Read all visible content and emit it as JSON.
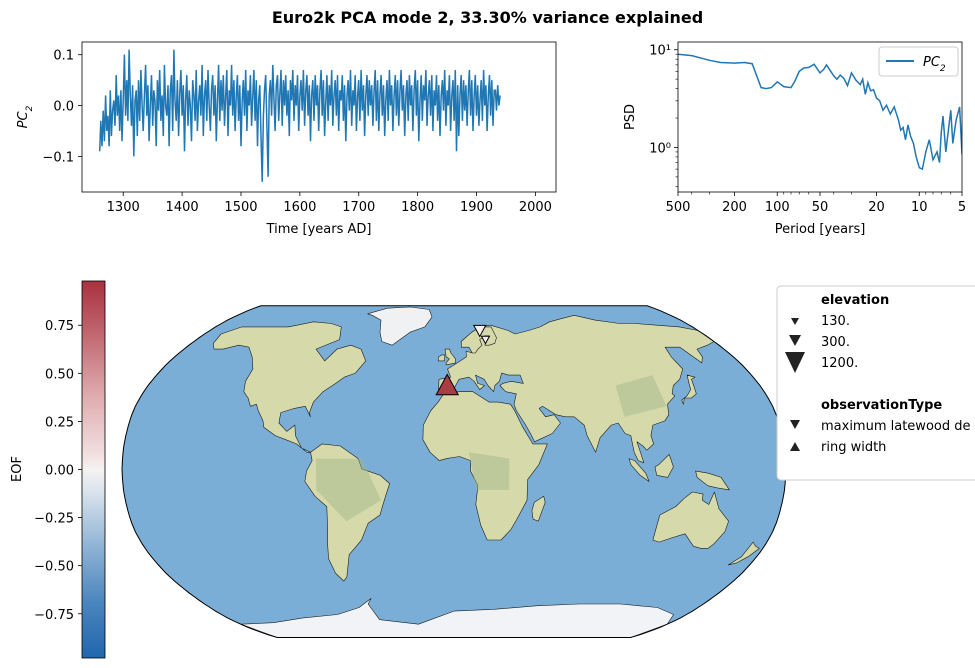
{
  "figure": {
    "title": "Euro2k PCA mode 2, 33.30% variance explained"
  },
  "chart_data": [
    {
      "type": "line",
      "panel": "timeseries",
      "title": "",
      "xlabel": "Time [years AD]",
      "ylabel": "PC_2",
      "xlim": [
        1230,
        2035
      ],
      "ylim": [
        -0.17,
        0.125
      ],
      "xticks": [
        1300,
        1400,
        1500,
        1600,
        1700,
        1800,
        1900,
        2000
      ],
      "xtick_labels": [
        "1300",
        "1400",
        "1500",
        "1600",
        "1700",
        "1800",
        "1900",
        "2000"
      ],
      "yticks": [
        -0.1,
        0.0,
        0.1
      ],
      "ytick_labels": [
        "−0.1",
        "0.0",
        "0.1"
      ],
      "grid": false,
      "line_color": "#1f77b4",
      "series": [
        {
          "x_start": 1260,
          "x_end": 2000,
          "step": 2,
          "values": [
            -0.09,
            -0.03,
            -0.08,
            -0.01,
            -0.07,
            0.02,
            -0.05,
            -0.02,
            -0.08,
            0.03,
            -0.06,
            -0.01,
            0.01,
            -0.04,
            0.06,
            -0.02,
            0.02,
            -0.05,
            0.03,
            -0.07,
            0.01,
            0.1,
            -0.02,
            0.05,
            -0.03,
            0.11,
            0.02,
            -0.04,
            0.04,
            -0.1,
            0.01,
            0.03,
            -0.06,
            0.05,
            -0.03,
            0.07,
            0.0,
            -0.05,
            0.02,
            0.08,
            -0.02,
            0.04,
            -0.07,
            0.0,
            0.06,
            -0.04,
            0.03,
            0.01,
            -0.08,
            0.05,
            -0.01,
            0.07,
            -0.03,
            0.02,
            -0.06,
            0.08,
            0.0,
            -0.02,
            0.04,
            -0.08,
            0.03,
            0.06,
            -0.05,
            0.11,
            0.01,
            -0.03,
            0.05,
            -0.06,
            0.02,
            0.07,
            -0.02,
            0.04,
            -0.09,
            0.01,
            0.06,
            -0.04,
            0.03,
            0.0,
            -0.07,
            0.05,
            0.02,
            -0.03,
            0.07,
            -0.05,
            0.01,
            0.04,
            -0.02,
            0.08,
            -0.06,
            0.02,
            0.05,
            -0.03,
            0.07,
            0.0,
            -0.05,
            0.03,
            0.06,
            -0.02,
            0.04,
            -0.07,
            0.01,
            0.08,
            -0.03,
            0.05,
            -0.01,
            0.06,
            -0.04,
            0.02,
            0.07,
            -0.06,
            0.03,
            0.0,
            0.08,
            -0.02,
            0.05,
            -0.05,
            0.02,
            0.06,
            -0.03,
            0.04,
            -0.08,
            0.01,
            0.05,
            -0.02,
            0.07,
            -0.05,
            0.03,
            0.0,
            0.06,
            -0.04,
            0.02,
            0.07,
            -0.03,
            0.05,
            -0.08,
            0.01,
            0.04,
            -0.06,
            -0.15,
            -0.02,
            0.03,
            0.06,
            -0.04,
            -0.14,
            0.02,
            0.05,
            -0.02,
            0.08,
            0.01,
            -0.05,
            0.04,
            0.06,
            -0.03,
            0.02,
            0.07,
            -0.04,
            0.05,
            0.0,
            0.06,
            -0.02,
            0.03,
            -0.06,
            0.05,
            0.01,
            0.07,
            -0.03,
            0.04,
            0.0,
            0.06,
            -0.05,
            0.02,
            0.05,
            -0.01,
            0.07,
            -0.04,
            0.03,
            0.06,
            -0.02,
            0.04,
            -0.07,
            0.02,
            0.05,
            -0.03,
            0.06,
            0.0,
            0.04,
            -0.05,
            0.03,
            0.07,
            -0.02,
            0.05,
            -0.06,
            0.01,
            0.06,
            -0.03,
            0.04,
            0.0,
            0.07,
            -0.04,
            0.02,
            0.05,
            -0.02,
            0.06,
            -0.05,
            0.03,
            0.01,
            0.06,
            -0.03,
            0.04,
            -0.07,
            0.02,
            0.05,
            -0.01,
            0.07,
            -0.04,
            0.03,
            0.0,
            0.06,
            -0.05,
            0.02,
            0.05,
            -0.03,
            0.07,
            -0.01,
            0.04,
            -0.06,
            0.02,
            0.06,
            -0.02,
            0.05,
            0.0,
            0.04,
            -0.04,
            0.03,
            0.07,
            -0.03,
            0.05,
            -0.05,
            0.02,
            0.06,
            -0.02,
            0.04,
            -0.06,
            0.01,
            0.05,
            -0.03,
            0.07,
            0.0,
            0.04,
            -0.05,
            0.02,
            0.06,
            -0.02,
            0.05,
            -0.04,
            0.03,
            0.07,
            -0.01,
            0.04,
            -0.06,
            0.02,
            0.05,
            -0.03,
            0.06,
            0.0,
            0.04,
            -0.05,
            0.03,
            0.07,
            -0.02,
            0.05,
            -0.07,
            0.01,
            0.06,
            -0.03,
            0.04,
            0.01,
            0.07,
            -0.04,
            0.02,
            0.05,
            -0.02,
            0.06,
            -0.05,
            0.03,
            0.0,
            0.06,
            -0.03,
            0.04,
            -0.06,
            0.02,
            0.05,
            -0.01,
            0.07,
            -0.04,
            0.03,
            0.0,
            0.06,
            -0.05,
            0.02,
            0.05,
            -0.03,
            0.07,
            -0.09,
            0.04,
            -0.06,
            0.02,
            0.06,
            -0.03,
            0.05,
            -0.01,
            0.04,
            -0.04,
            0.03,
            0.07,
            -0.02,
            0.05,
            -0.05,
            0.02,
            0.06,
            -0.02,
            0.04,
            -0.04,
            0.01,
            0.05,
            -0.03,
            0.07,
            0.0,
            0.04,
            -0.05,
            0.02,
            0.06,
            -0.02,
            0.05,
            -0.04,
            0.03,
            0.03,
            -0.01,
            0.04,
            0.0,
            0.02
          ]
        }
      ]
    },
    {
      "type": "line",
      "panel": "spectrum",
      "title": "",
      "xlabel": "Period [years]",
      "ylabel": "PSD",
      "x_scale": "log (reversed)",
      "y_scale": "log",
      "xlim": [
        500,
        5
      ],
      "ylim": [
        0.35,
        12
      ],
      "xticks": [
        500,
        200,
        100,
        50,
        20,
        10,
        5
      ],
      "xtick_labels": [
        "500",
        "200",
        "100",
        "50",
        "20",
        "10",
        "5"
      ],
      "yticks": [
        1,
        10
      ],
      "ytick_labels": [
        "10⁰",
        "10¹"
      ],
      "legend": {
        "position": "upper right",
        "entries": [
          "PC_2"
        ]
      },
      "line_color": "#1f77b4",
      "series": [
        {
          "name": "PC_2",
          "x": [
            500,
            400,
            300,
            250,
            200,
            170,
            150,
            130,
            120,
            110,
            100,
            90,
            80,
            75,
            70,
            65,
            60,
            55,
            50,
            47,
            45,
            42,
            40,
            38,
            36,
            34,
            32,
            30,
            28,
            26,
            25,
            24,
            23,
            22,
            21,
            20,
            19,
            18,
            17,
            16,
            15,
            14,
            13.5,
            13,
            12.5,
            12,
            11.5,
            11,
            10.5,
            10,
            9.5,
            9,
            8.5,
            8,
            7.5,
            7.2,
            7,
            6.8,
            6.5,
            6.2,
            6,
            5.8,
            5.5,
            5.2,
            5
          ],
          "y": [
            9.0,
            8.7,
            7.8,
            7.4,
            7.3,
            7.4,
            7.2,
            4.1,
            4.0,
            4.1,
            4.7,
            4.2,
            4.1,
            4.8,
            6.0,
            6.5,
            6.6,
            7.1,
            5.8,
            6.3,
            7.0,
            6.0,
            5.4,
            5.0,
            5.5,
            5.1,
            4.3,
            5.8,
            4.9,
            4.4,
            5.0,
            3.5,
            4.6,
            3.8,
            3.9,
            3.2,
            3.0,
            2.4,
            2.7,
            2.2,
            2.6,
            1.9,
            1.5,
            1.6,
            1.2,
            1.7,
            1.3,
            1.1,
            0.8,
            0.62,
            0.6,
            0.9,
            1.2,
            0.75,
            0.9,
            0.7,
            1.4,
            2.1,
            0.9,
            1.6,
            2.4,
            1.1,
            1.9,
            2.6,
            0.85
          ]
        }
      ]
    },
    {
      "type": "map",
      "panel": "eof_map",
      "projection": "Robinson",
      "colorbar": {
        "label": "EOF",
        "range": [
          -0.98,
          0.98
        ],
        "ticks": [
          0.75,
          0.5,
          0.25,
          0.0,
          -0.25,
          -0.5,
          -0.75
        ],
        "tick_labels": [
          "0.75",
          "0.50",
          "0.25",
          "0.00",
          "−0.25",
          "−0.50",
          "−0.75"
        ],
        "colormap": "RdBu_r"
      },
      "markers": [
        {
          "lon": -4,
          "lat": 40,
          "elevation": 1200,
          "observationType": "ring width",
          "eof": 0.68,
          "color": "#aa3c44"
        },
        {
          "lon": 19,
          "lat": 68,
          "elevation": 300,
          "observationType": "maximum latewood density",
          "eof": 0.0,
          "color": "#f4f2f1"
        },
        {
          "lon": 22,
          "lat": 63,
          "elevation": 130,
          "observationType": "maximum latewood density",
          "eof": 0.0,
          "color": "#f4f2f1"
        }
      ],
      "legend": {
        "elevation_title": "elevation",
        "elevation_entries": [
          "130.",
          "300.",
          "1200."
        ],
        "observation_title": "observationType",
        "observation_entries": [
          "maximum latewood de",
          "ring width"
        ]
      }
    }
  ]
}
